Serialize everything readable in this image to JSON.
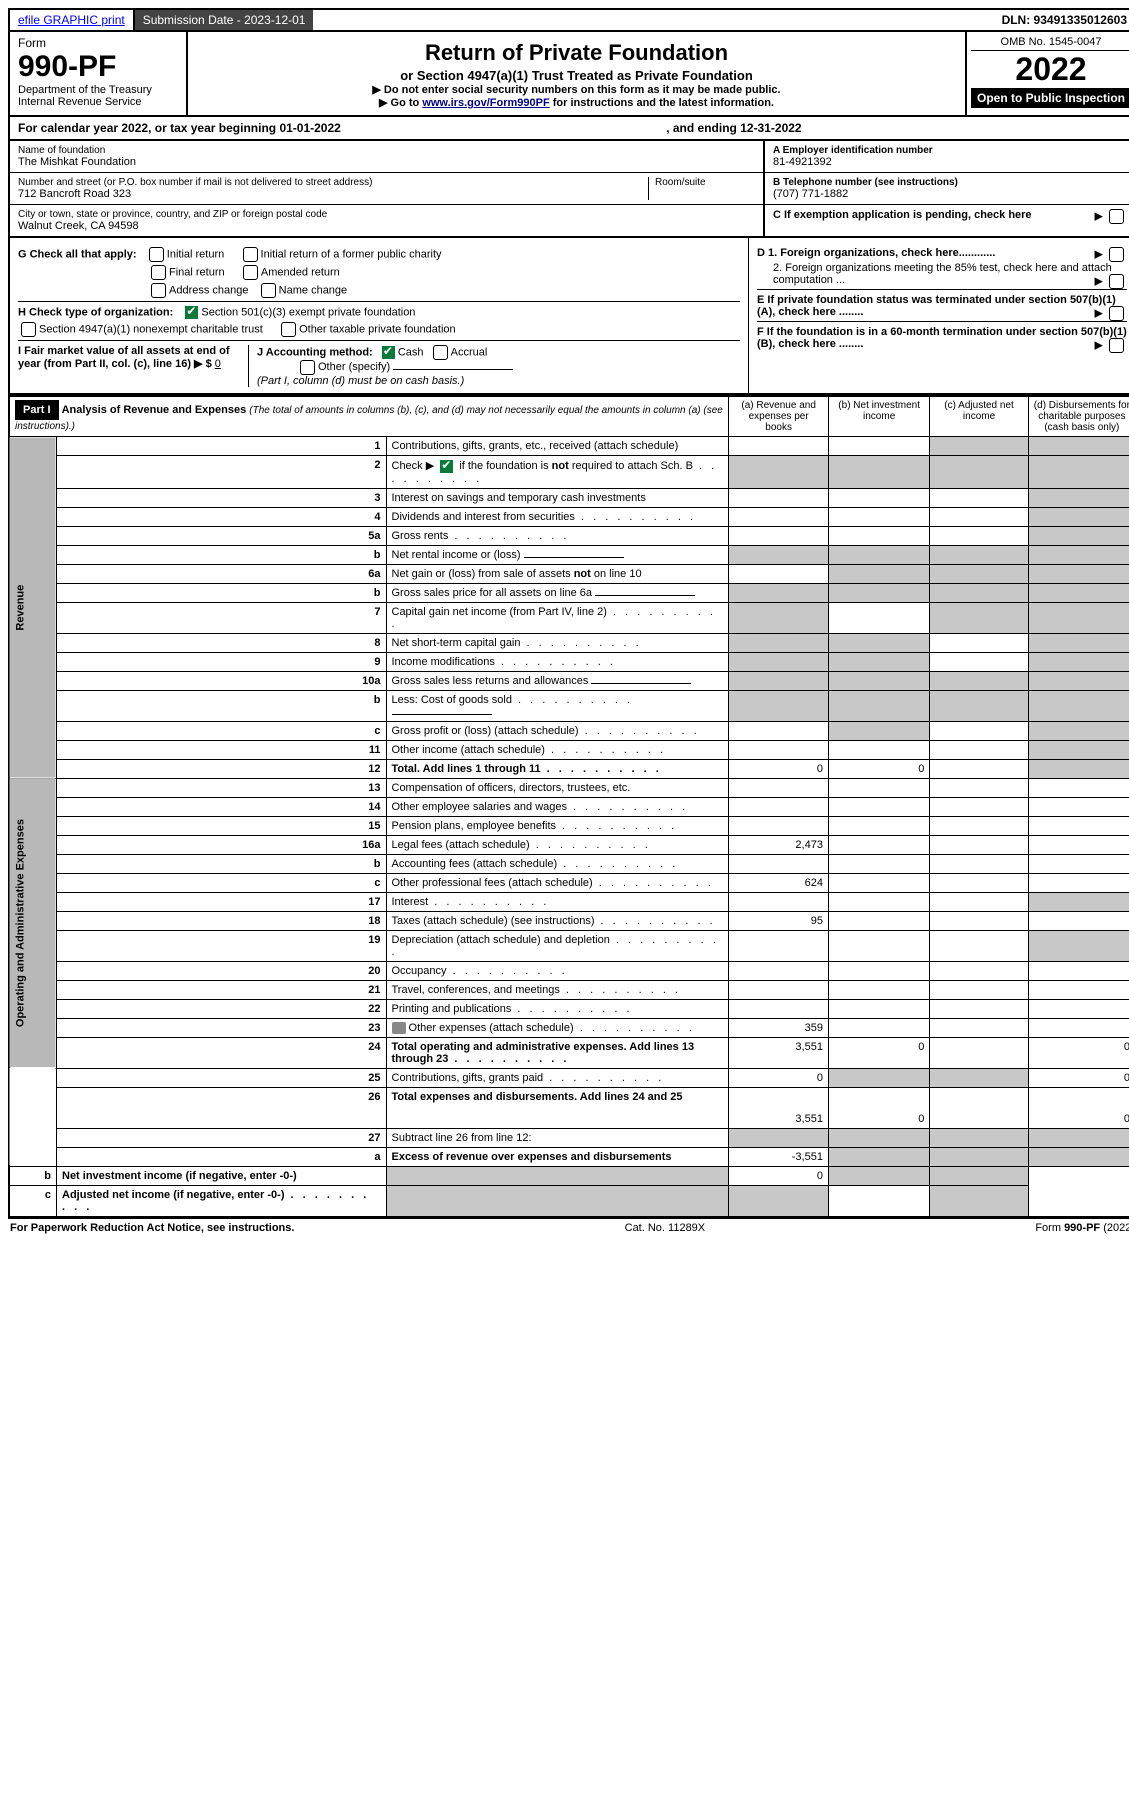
{
  "top_bar": {
    "efile": "efile GRAPHIC print",
    "sub_label": "Submission Date - 2023-12-01",
    "dln": "DLN: 93491335012603"
  },
  "header": {
    "form_word": "Form",
    "form_no": "990-PF",
    "dept": "Department of the Treasury",
    "irs": "Internal Revenue Service",
    "title": "Return of Private Foundation",
    "subtitle": "or Section 4947(a)(1) Trust Treated as Private Foundation",
    "note1": "▶ Do not enter social security numbers on this form as it may be made public.",
    "note2": "▶ Go to ",
    "link": "www.irs.gov/Form990PF",
    "note2b": " for instructions and the latest information.",
    "omb": "OMB No. 1545-0047",
    "year": "2022",
    "inspect": "Open to Public Inspection"
  },
  "cal": {
    "prefix": "For calendar year 2022, or tax year beginning 01-01-2022",
    "suffix": ", and ending 12-31-2022"
  },
  "entity": {
    "name_lbl": "Name of foundation",
    "name": "The Mishkat Foundation",
    "addr_lbl": "Number and street (or P.O. box number if mail is not delivered to street address)",
    "suite_lbl": "Room/suite",
    "addr": "712 Bancroft Road 323",
    "city_lbl": "City or town, state or province, country, and ZIP or foreign postal code",
    "city": "Walnut Creek, CA  94598",
    "a_lbl": "A Employer identification number",
    "a_val": "81-4921392",
    "b_lbl": "B Telephone number (see instructions)",
    "b_val": "(707) 771-1882",
    "c_lbl": "C If exemption application is pending, check here"
  },
  "g": {
    "label": "G Check all that apply:",
    "o1": "Initial return",
    "o2": "Initial return of a former public charity",
    "o3": "Final return",
    "o4": "Amended return",
    "o5": "Address change",
    "o6": "Name change"
  },
  "h": {
    "label": "H Check type of organization:",
    "o1": "Section 501(c)(3) exempt private foundation",
    "o2": "Section 4947(a)(1) nonexempt charitable trust",
    "o3": "Other taxable private foundation"
  },
  "i": {
    "label": "I Fair market value of all assets at end of year (from Part II, col. (c), line 16) ▶ $",
    "val": "0"
  },
  "j": {
    "label": "J Accounting method:",
    "o1": "Cash",
    "o2": "Accrual",
    "o3": "Other (specify)",
    "foot": "(Part I, column (d) must be on cash basis.)"
  },
  "right_opts": {
    "d1": "D 1. Foreign organizations, check here............",
    "d2": "2. Foreign organizations meeting the 85% test, check here and attach computation ...",
    "e": "E  If private foundation status was terminated under section 507(b)(1)(A), check here ........",
    "f": "F  If the foundation is in a 60-month termination under section 507(b)(1)(B), check here ........"
  },
  "part1": {
    "tag": "Part I",
    "title": "Analysis of Revenue and Expenses",
    "note": "(The total of amounts in columns (b), (c), and (d) may not necessarily equal the amounts in column (a) (see instructions).)",
    "col_a": "(a)    Revenue and expenses per books",
    "col_b": "(b)    Net investment income",
    "col_c": "(c)    Adjusted net income",
    "col_d": "(d)    Disbursements for charitable purposes (cash basis only)"
  },
  "side_labels": {
    "rev": "Revenue",
    "exp": "Operating and Administrative Expenses"
  },
  "rows": [
    {
      "n": "1",
      "t": "Contributions, gifts, grants, etc., received (attach schedule)",
      "a": "",
      "b": "",
      "c": "",
      "d": "",
      "sh": [
        "c",
        "d"
      ]
    },
    {
      "n": "2",
      "t": "Check ▶ ☑ if the foundation is not required to attach Sch. B",
      "dots": true,
      "a": "",
      "b": "",
      "c": "",
      "d": "",
      "sh": [
        "a",
        "b",
        "c",
        "d"
      ]
    },
    {
      "n": "3",
      "t": "Interest on savings and temporary cash investments",
      "a": "",
      "b": "",
      "c": "",
      "d": "",
      "sh": [
        "d"
      ]
    },
    {
      "n": "4",
      "t": "Dividends and interest from securities",
      "dots": true,
      "a": "",
      "b": "",
      "c": "",
      "d": "",
      "sh": [
        "d"
      ]
    },
    {
      "n": "5a",
      "t": "Gross rents",
      "dots": true,
      "a": "",
      "b": "",
      "c": "",
      "d": "",
      "sh": [
        "d"
      ]
    },
    {
      "n": "b",
      "t": "Net rental income or (loss)",
      "a": "",
      "b": "",
      "c": "",
      "d": "",
      "sh": [
        "a",
        "b",
        "c",
        "d"
      ],
      "inline": true
    },
    {
      "n": "6a",
      "t": "Net gain or (loss) from sale of assets not on line 10",
      "a": "",
      "b": "",
      "c": "",
      "d": "",
      "sh": [
        "b",
        "c",
        "d"
      ]
    },
    {
      "n": "b",
      "t": "Gross sales price for all assets on line 6a",
      "a": "",
      "b": "",
      "c": "",
      "d": "",
      "sh": [
        "a",
        "b",
        "c",
        "d"
      ],
      "inline": true
    },
    {
      "n": "7",
      "t": "Capital gain net income (from Part IV, line 2)",
      "dots": true,
      "a": "",
      "b": "",
      "c": "",
      "d": "",
      "sh": [
        "a",
        "c",
        "d"
      ]
    },
    {
      "n": "8",
      "t": "Net short-term capital gain",
      "dots": true,
      "a": "",
      "b": "",
      "c": "",
      "d": "",
      "sh": [
        "a",
        "b",
        "d"
      ]
    },
    {
      "n": "9",
      "t": "Income modifications",
      "dots": true,
      "a": "",
      "b": "",
      "c": "",
      "d": "",
      "sh": [
        "a",
        "b",
        "d"
      ]
    },
    {
      "n": "10a",
      "t": "Gross sales less returns and allowances",
      "a": "",
      "b": "",
      "c": "",
      "d": "",
      "sh": [
        "a",
        "b",
        "c",
        "d"
      ],
      "inline": true
    },
    {
      "n": "b",
      "t": "Less: Cost of goods sold",
      "dots": true,
      "a": "",
      "b": "",
      "c": "",
      "d": "",
      "sh": [
        "a",
        "b",
        "c",
        "d"
      ],
      "inline": true
    },
    {
      "n": "c",
      "t": "Gross profit or (loss) (attach schedule)",
      "dots": true,
      "a": "",
      "b": "",
      "c": "",
      "d": "",
      "sh": [
        "b",
        "d"
      ]
    },
    {
      "n": "11",
      "t": "Other income (attach schedule)",
      "dots": true,
      "a": "",
      "b": "",
      "c": "",
      "d": "",
      "sh": [
        "d"
      ]
    },
    {
      "n": "12",
      "t": "Total. Add lines 1 through 11",
      "dots": true,
      "bold": true,
      "a": "0",
      "b": "0",
      "c": "",
      "d": "",
      "sh": [
        "d"
      ]
    },
    {
      "n": "13",
      "t": "Compensation of officers, directors, trustees, etc.",
      "a": "",
      "b": "",
      "c": "",
      "d": ""
    },
    {
      "n": "14",
      "t": "Other employee salaries and wages",
      "dots": true,
      "a": "",
      "b": "",
      "c": "",
      "d": ""
    },
    {
      "n": "15",
      "t": "Pension plans, employee benefits",
      "dots": true,
      "a": "",
      "b": "",
      "c": "",
      "d": ""
    },
    {
      "n": "16a",
      "t": "Legal fees (attach schedule)",
      "dots": true,
      "a": "2,473",
      "b": "",
      "c": "",
      "d": ""
    },
    {
      "n": "b",
      "t": "Accounting fees (attach schedule)",
      "dots": true,
      "a": "",
      "b": "",
      "c": "",
      "d": ""
    },
    {
      "n": "c",
      "t": "Other professional fees (attach schedule)",
      "dots": true,
      "a": "624",
      "b": "",
      "c": "",
      "d": ""
    },
    {
      "n": "17",
      "t": "Interest",
      "dots": true,
      "a": "",
      "b": "",
      "c": "",
      "d": "",
      "sh": [
        "d"
      ]
    },
    {
      "n": "18",
      "t": "Taxes (attach schedule) (see instructions)",
      "dots": true,
      "a": "95",
      "b": "",
      "c": "",
      "d": ""
    },
    {
      "n": "19",
      "t": "Depreciation (attach schedule) and depletion",
      "dots": true,
      "a": "",
      "b": "",
      "c": "",
      "d": "",
      "sh": [
        "d"
      ]
    },
    {
      "n": "20",
      "t": "Occupancy",
      "dots": true,
      "a": "",
      "b": "",
      "c": "",
      "d": ""
    },
    {
      "n": "21",
      "t": "Travel, conferences, and meetings",
      "dots": true,
      "a": "",
      "b": "",
      "c": "",
      "d": ""
    },
    {
      "n": "22",
      "t": "Printing and publications",
      "dots": true,
      "a": "",
      "b": "",
      "c": "",
      "d": ""
    },
    {
      "n": "23",
      "t": "Other expenses (attach schedule)",
      "dots": true,
      "a": "359",
      "b": "",
      "c": "",
      "d": "",
      "icon": true
    },
    {
      "n": "24",
      "t": "Total operating and administrative expenses. Add lines 13 through 23",
      "dots": true,
      "bold": true,
      "a": "3,551",
      "b": "0",
      "c": "",
      "d": "0"
    },
    {
      "n": "25",
      "t": "Contributions, gifts, grants paid",
      "dots": true,
      "a": "0",
      "b": "",
      "c": "",
      "d": "0",
      "sh": [
        "b",
        "c"
      ]
    },
    {
      "n": "26",
      "t": "Total expenses and disbursements. Add lines 24 and 25",
      "bold": true,
      "a": "3,551",
      "b": "0",
      "c": "",
      "d": "0",
      "tall": true
    },
    {
      "n": "27",
      "t": "Subtract line 26 from line 12:",
      "a": "",
      "b": "",
      "c": "",
      "d": "",
      "sh": [
        "a",
        "b",
        "c",
        "d"
      ]
    },
    {
      "n": "a",
      "t": "Excess of revenue over expenses and disbursements",
      "bold": true,
      "a": "-3,551",
      "b": "",
      "c": "",
      "d": "",
      "sh": [
        "b",
        "c",
        "d"
      ]
    },
    {
      "n": "b",
      "t": "Net investment income (if negative, enter -0-)",
      "bold": true,
      "a": "",
      "b": "0",
      "c": "",
      "d": "",
      "sh": [
        "a",
        "c",
        "d"
      ]
    },
    {
      "n": "c",
      "t": "Adjusted net income (if negative, enter -0-)",
      "dots": true,
      "bold": true,
      "a": "",
      "b": "",
      "c": "",
      "d": "",
      "sh": [
        "a",
        "b",
        "d"
      ]
    }
  ],
  "footer": {
    "left": "For Paperwork Reduction Act Notice, see instructions.",
    "mid": "Cat. No. 11289X",
    "right": "Form 990-PF (2022)"
  }
}
